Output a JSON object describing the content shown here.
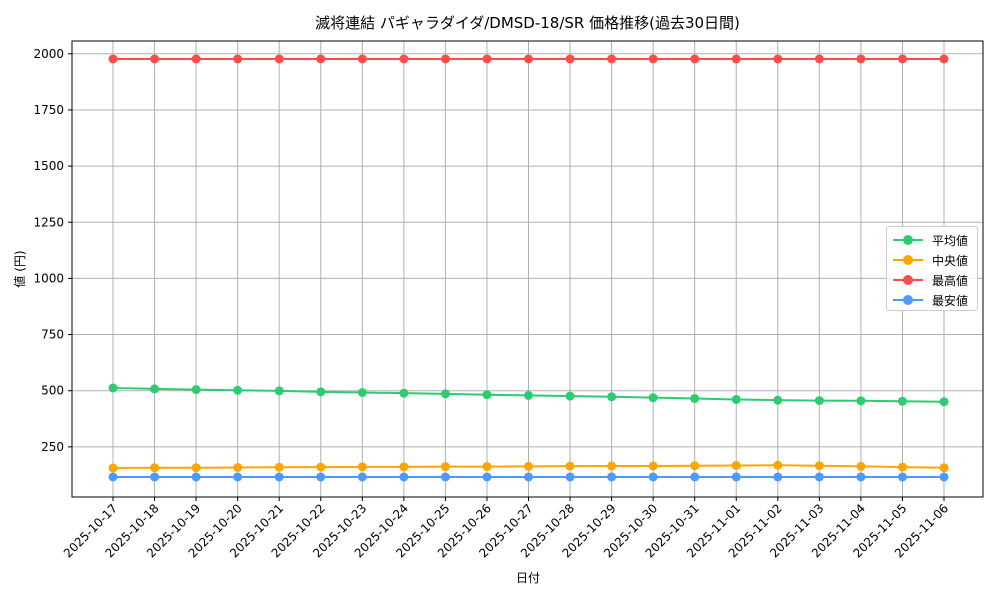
{
  "chart_data": {
    "type": "line",
    "title": "滅将連結 パギャラダイダ/DMSD-18/SR 価格推移(過去30日間)",
    "xlabel": "日付",
    "ylabel": "値 (円)",
    "ylim": [
      0,
      2070
    ],
    "yticks": [
      250,
      500,
      750,
      1000,
      1250,
      1500,
      1750,
      2000
    ],
    "grid": true,
    "legend_position": "center right",
    "categories": [
      "2025-10-17",
      "2025-10-18",
      "2025-10-19",
      "2025-10-20",
      "2025-10-21",
      "2025-10-22",
      "2025-10-23",
      "2025-10-24",
      "2025-10-25",
      "2025-10-26",
      "2025-10-27",
      "2025-10-28",
      "2025-10-29",
      "2025-10-30",
      "2025-10-31",
      "2025-11-01",
      "2025-11-02",
      "2025-11-03",
      "2025-11-04",
      "2025-11-05",
      "2025-11-06"
    ],
    "series": [
      {
        "name": "平均値",
        "color": "#2ecc71",
        "values": [
          512,
          508,
          505,
          502,
          499,
          495,
          492,
          489,
          486,
          482,
          479,
          476,
          473,
          469,
          465,
          461,
          458,
          456,
          455,
          453,
          451
        ]
      },
      {
        "name": "中央値",
        "color": "#ffa500",
        "values": [
          156,
          157,
          157,
          158,
          159,
          160,
          161,
          161,
          162,
          162,
          163,
          164,
          165,
          165,
          166,
          167,
          168,
          166,
          163,
          160,
          157
        ]
      },
      {
        "name": "最高値",
        "color": "#ff4d4d",
        "values": [
          1977,
          1977,
          1977,
          1977,
          1977,
          1977,
          1977,
          1977,
          1977,
          1977,
          1977,
          1977,
          1977,
          1977,
          1977,
          1977,
          1977,
          1977,
          1977,
          1977,
          1977
        ]
      },
      {
        "name": "最安値",
        "color": "#4d9aff",
        "values": [
          116,
          116,
          116,
          116,
          116,
          116,
          116,
          116,
          116,
          116,
          116,
          116,
          116,
          116,
          116,
          116,
          116,
          116,
          116,
          116,
          116
        ]
      }
    ]
  }
}
